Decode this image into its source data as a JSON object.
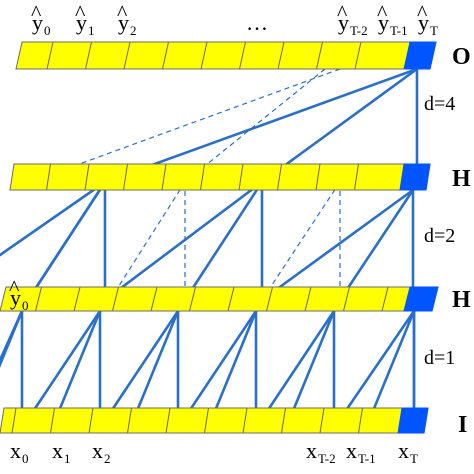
{
  "colors": {
    "cell_fill": "#ffff00",
    "cell_stroke": "#6b6b6b",
    "last_cell_fill": "#0055ff",
    "connection": "#2a6fc9",
    "text": "#000000"
  },
  "layers": [
    {
      "name": "output",
      "side_label": "O",
      "cells": 15
    },
    {
      "name": "hidden-2",
      "side_label": "H",
      "cells": 15
    },
    {
      "name": "hidden-1",
      "side_label": "H",
      "cells": 15
    },
    {
      "name": "input",
      "side_label": "I",
      "cells": 15
    }
  ],
  "dilations": [
    "d=4",
    "d=2",
    "d=1"
  ],
  "top_labels": [
    {
      "base": "y",
      "sub": "0",
      "hat": "^"
    },
    {
      "base": "y",
      "sub": "1",
      "hat": "^"
    },
    {
      "base": "y",
      "sub": "2",
      "hat": "^"
    },
    {
      "base": "…",
      "sub": "",
      "hat": ""
    },
    {
      "base": "y",
      "sub": "T-2",
      "hat": "^"
    },
    {
      "base": "y",
      "sub": "T-1",
      "hat": "^"
    },
    {
      "base": "y",
      "sub": "T",
      "hat": "^"
    }
  ],
  "hidden1_label": {
    "base": "y",
    "sub": "0",
    "hat": "^"
  },
  "bottom_labels": [
    {
      "base": "x",
      "sub": "0"
    },
    {
      "base": "x",
      "sub": "1"
    },
    {
      "base": "x",
      "sub": "2"
    },
    {
      "base": "x",
      "sub": "T-2"
    },
    {
      "base": "x",
      "sub": "T-1"
    },
    {
      "base": "x",
      "sub": "T"
    }
  ]
}
